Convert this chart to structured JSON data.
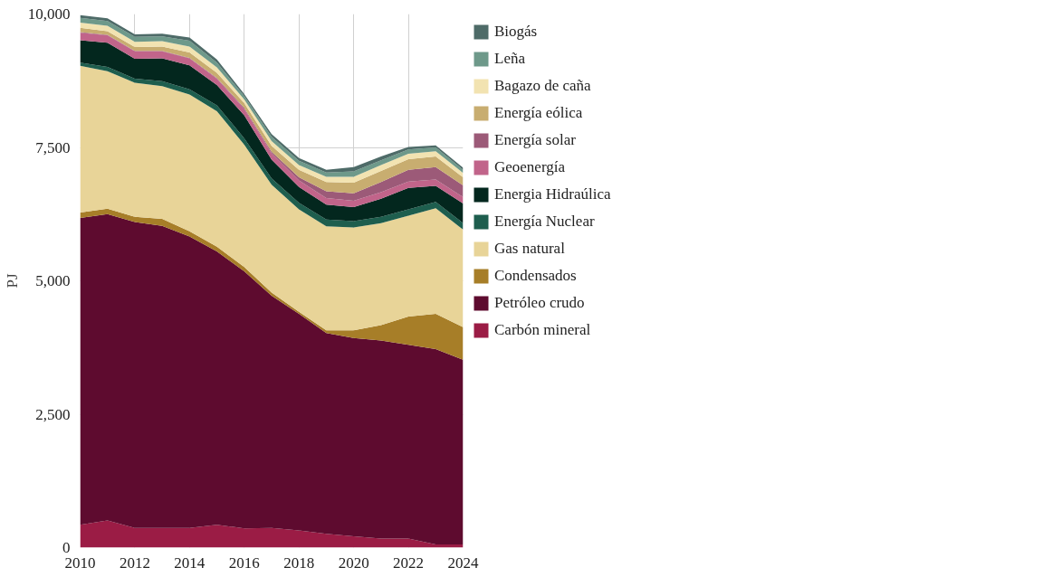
{
  "chart_data": {
    "type": "area",
    "stacked": true,
    "ylabel": "PJ",
    "x": [
      2010,
      2011,
      2012,
      2013,
      2014,
      2015,
      2016,
      2017,
      2018,
      2019,
      2020,
      2021,
      2022,
      2023,
      2024
    ],
    "xlim": [
      2010,
      2024
    ],
    "xticks": [
      2010,
      2012,
      2014,
      2016,
      2018,
      2020,
      2022,
      2024
    ],
    "ylim": [
      0,
      10000
    ],
    "yticks": [
      {
        "value": 0,
        "label": "0"
      },
      {
        "value": 2500,
        "label": "2,500"
      },
      {
        "value": 5000,
        "label": "5,000"
      },
      {
        "value": 7500,
        "label": "7,500"
      },
      {
        "value": 10000,
        "label": "10,000"
      }
    ],
    "grid": true,
    "legend": "right",
    "series": [
      {
        "name": "Carbón mineral",
        "color": "#9b1c45",
        "values": [
          430,
          510,
          370,
          370,
          370,
          430,
          360,
          370,
          320,
          260,
          210,
          170,
          170,
          60,
          60
        ]
      },
      {
        "name": "Petróleo crudo",
        "color": "#5e0b2f",
        "values": [
          5750,
          5740,
          5730,
          5660,
          5460,
          5120,
          4820,
          4350,
          4060,
          3760,
          3720,
          3710,
          3630,
          3660,
          3460
        ]
      },
      {
        "name": "Condensados",
        "color": "#a77e28",
        "values": [
          100,
          100,
          100,
          130,
          100,
          90,
          80,
          60,
          40,
          50,
          140,
          290,
          530,
          660,
          610
        ]
      },
      {
        "name": "Gas natural",
        "color": "#e8d498",
        "values": [
          2750,
          2580,
          2510,
          2490,
          2560,
          2540,
          2290,
          2020,
          1920,
          1950,
          1930,
          1910,
          1890,
          1980,
          1830
        ]
      },
      {
        "name": "Energía Nuclear",
        "color": "#1e5e4e",
        "values": [
          60,
          80,
          80,
          90,
          100,
          110,
          120,
          120,
          120,
          130,
          120,
          120,
          120,
          120,
          120
        ]
      },
      {
        "name": "Energia Hidraúlica",
        "color": "#03271e",
        "values": [
          420,
          450,
          370,
          430,
          450,
          380,
          430,
          350,
          300,
          280,
          260,
          340,
          400,
          300,
          370
        ]
      },
      {
        "name": "Geoenergía",
        "color": "#c1648a",
        "values": [
          140,
          140,
          140,
          130,
          130,
          120,
          120,
          120,
          120,
          120,
          120,
          120,
          120,
          120,
          120
        ]
      },
      {
        "name": "Energía solar",
        "color": "#9c5a78",
        "values": [
          10,
          10,
          10,
          10,
          10,
          10,
          20,
          30,
          60,
          130,
          140,
          190,
          220,
          230,
          220
        ]
      },
      {
        "name": "Energía eólica",
        "color": "#c8ad70",
        "values": [
          80,
          70,
          70,
          80,
          100,
          100,
          90,
          110,
          140,
          170,
          200,
          210,
          200,
          200,
          150
        ]
      },
      {
        "name": "Bagazo de caña",
        "color": "#f2e3b1",
        "values": [
          100,
          100,
          100,
          100,
          110,
          100,
          70,
          90,
          90,
          100,
          110,
          110,
          100,
          100,
          80
        ]
      },
      {
        "name": "Leña",
        "color": "#6e998a",
        "values": [
          90,
          90,
          90,
          90,
          110,
          90,
          60,
          80,
          80,
          80,
          100,
          90,
          80,
          70,
          60
        ]
      },
      {
        "name": "Biogás",
        "color": "#4e6b68",
        "values": [
          50,
          50,
          50,
          50,
          60,
          60,
          40,
          50,
          50,
          50,
          80,
          70,
          50,
          40,
          40
        ]
      }
    ]
  }
}
